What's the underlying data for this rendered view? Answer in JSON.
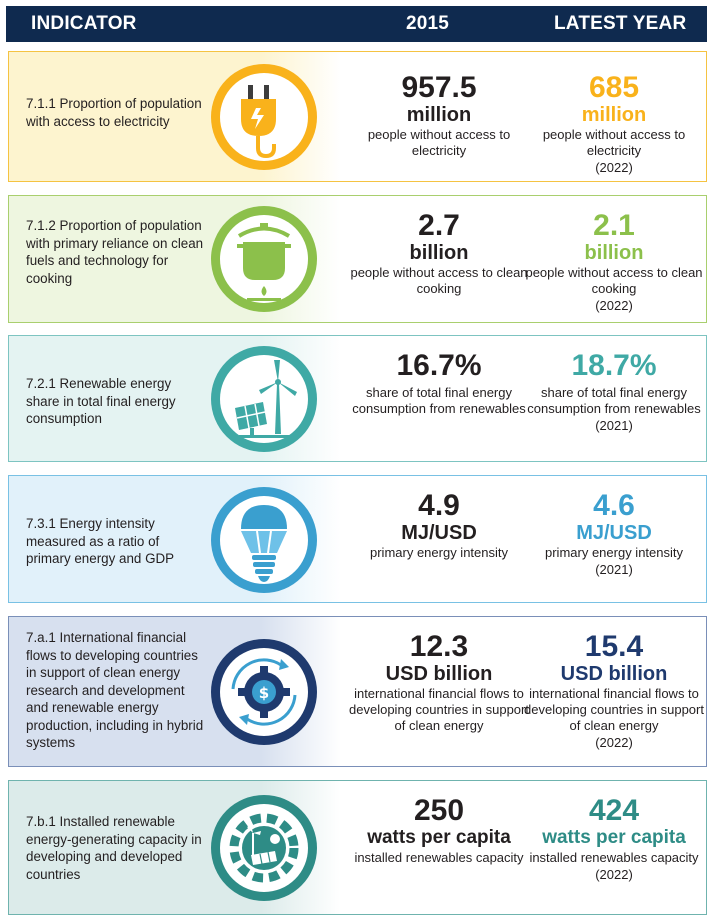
{
  "header": {
    "indicator": "INDICATOR",
    "year2015": "2015",
    "latest": "LATEST YEAR"
  },
  "colors": {
    "header_bg": "#0f2a4f",
    "electricity": "#f9b21b",
    "cooking": "#8cc04b",
    "renewable": "#3fa9a5",
    "intensity": "#3a9fcf",
    "finance": "#1f3a6e",
    "capacity": "#2e8c86"
  },
  "rows": [
    {
      "label": "7.1.1 Proportion of population with access to electricity",
      "icon": "electric-plug-icon",
      "v2015": {
        "num": "957.5",
        "unit": "million",
        "desc": "people without access to electricity"
      },
      "latest": {
        "num": "685",
        "unit": "million",
        "desc": "people without access to electricity",
        "year": "(2022)"
      }
    },
    {
      "label": "7.1.2 Proportion of population with primary reliance on clean fuels and technology for cooking",
      "icon": "cooking-pot-icon",
      "v2015": {
        "num": "2.7",
        "unit": "billion",
        "desc": "people without access to clean cooking"
      },
      "latest": {
        "num": "2.1",
        "unit": "billion",
        "desc": "people without access to clean cooking",
        "year": "(2022)"
      }
    },
    {
      "label": "7.2.1 Renewable energy share in total final energy consumption",
      "icon": "wind-solar-icon",
      "v2015": {
        "num": "16.7%",
        "unit": "",
        "desc": "share of total final energy consumption from renewables"
      },
      "latest": {
        "num": "18.7%",
        "unit": "",
        "desc": "share of total final energy consumption from renewables",
        "year": "(2021)"
      }
    },
    {
      "label": "7.3.1 Energy intensity measured as a ratio of primary energy and GDP",
      "icon": "light-bulb-icon",
      "v2015": {
        "num": "4.9",
        "unit": "MJ/USD",
        "desc": "primary energy intensity"
      },
      "latest": {
        "num": "4.6",
        "unit": "MJ/USD",
        "desc": "primary energy intensity",
        "year": "(2021)"
      }
    },
    {
      "label": "7.a.1 International financial flows to developing countries in support of clean energy research and development and renewable energy production, including in hybrid systems",
      "icon": "dollar-gear-icon",
      "v2015": {
        "num": "12.3",
        "unit": "USD billion",
        "desc": "international financial flows to developing countries in support of clean energy"
      },
      "latest": {
        "num": "15.4",
        "unit": "USD billion",
        "desc": "international financial flows to developing countries in support of clean energy",
        "year": "(2022)"
      }
    },
    {
      "label": "7.b.1 Installed renewable energy-generating capacity in developing and developed countries",
      "icon": "renewable-gear-icon",
      "v2015": {
        "num": "250",
        "unit": "watts per capita",
        "desc": "installed renewables capacity"
      },
      "latest": {
        "num": "424",
        "unit": "watts per capita",
        "desc": "installed renewables capacity",
        "year": "(2022)"
      }
    }
  ]
}
